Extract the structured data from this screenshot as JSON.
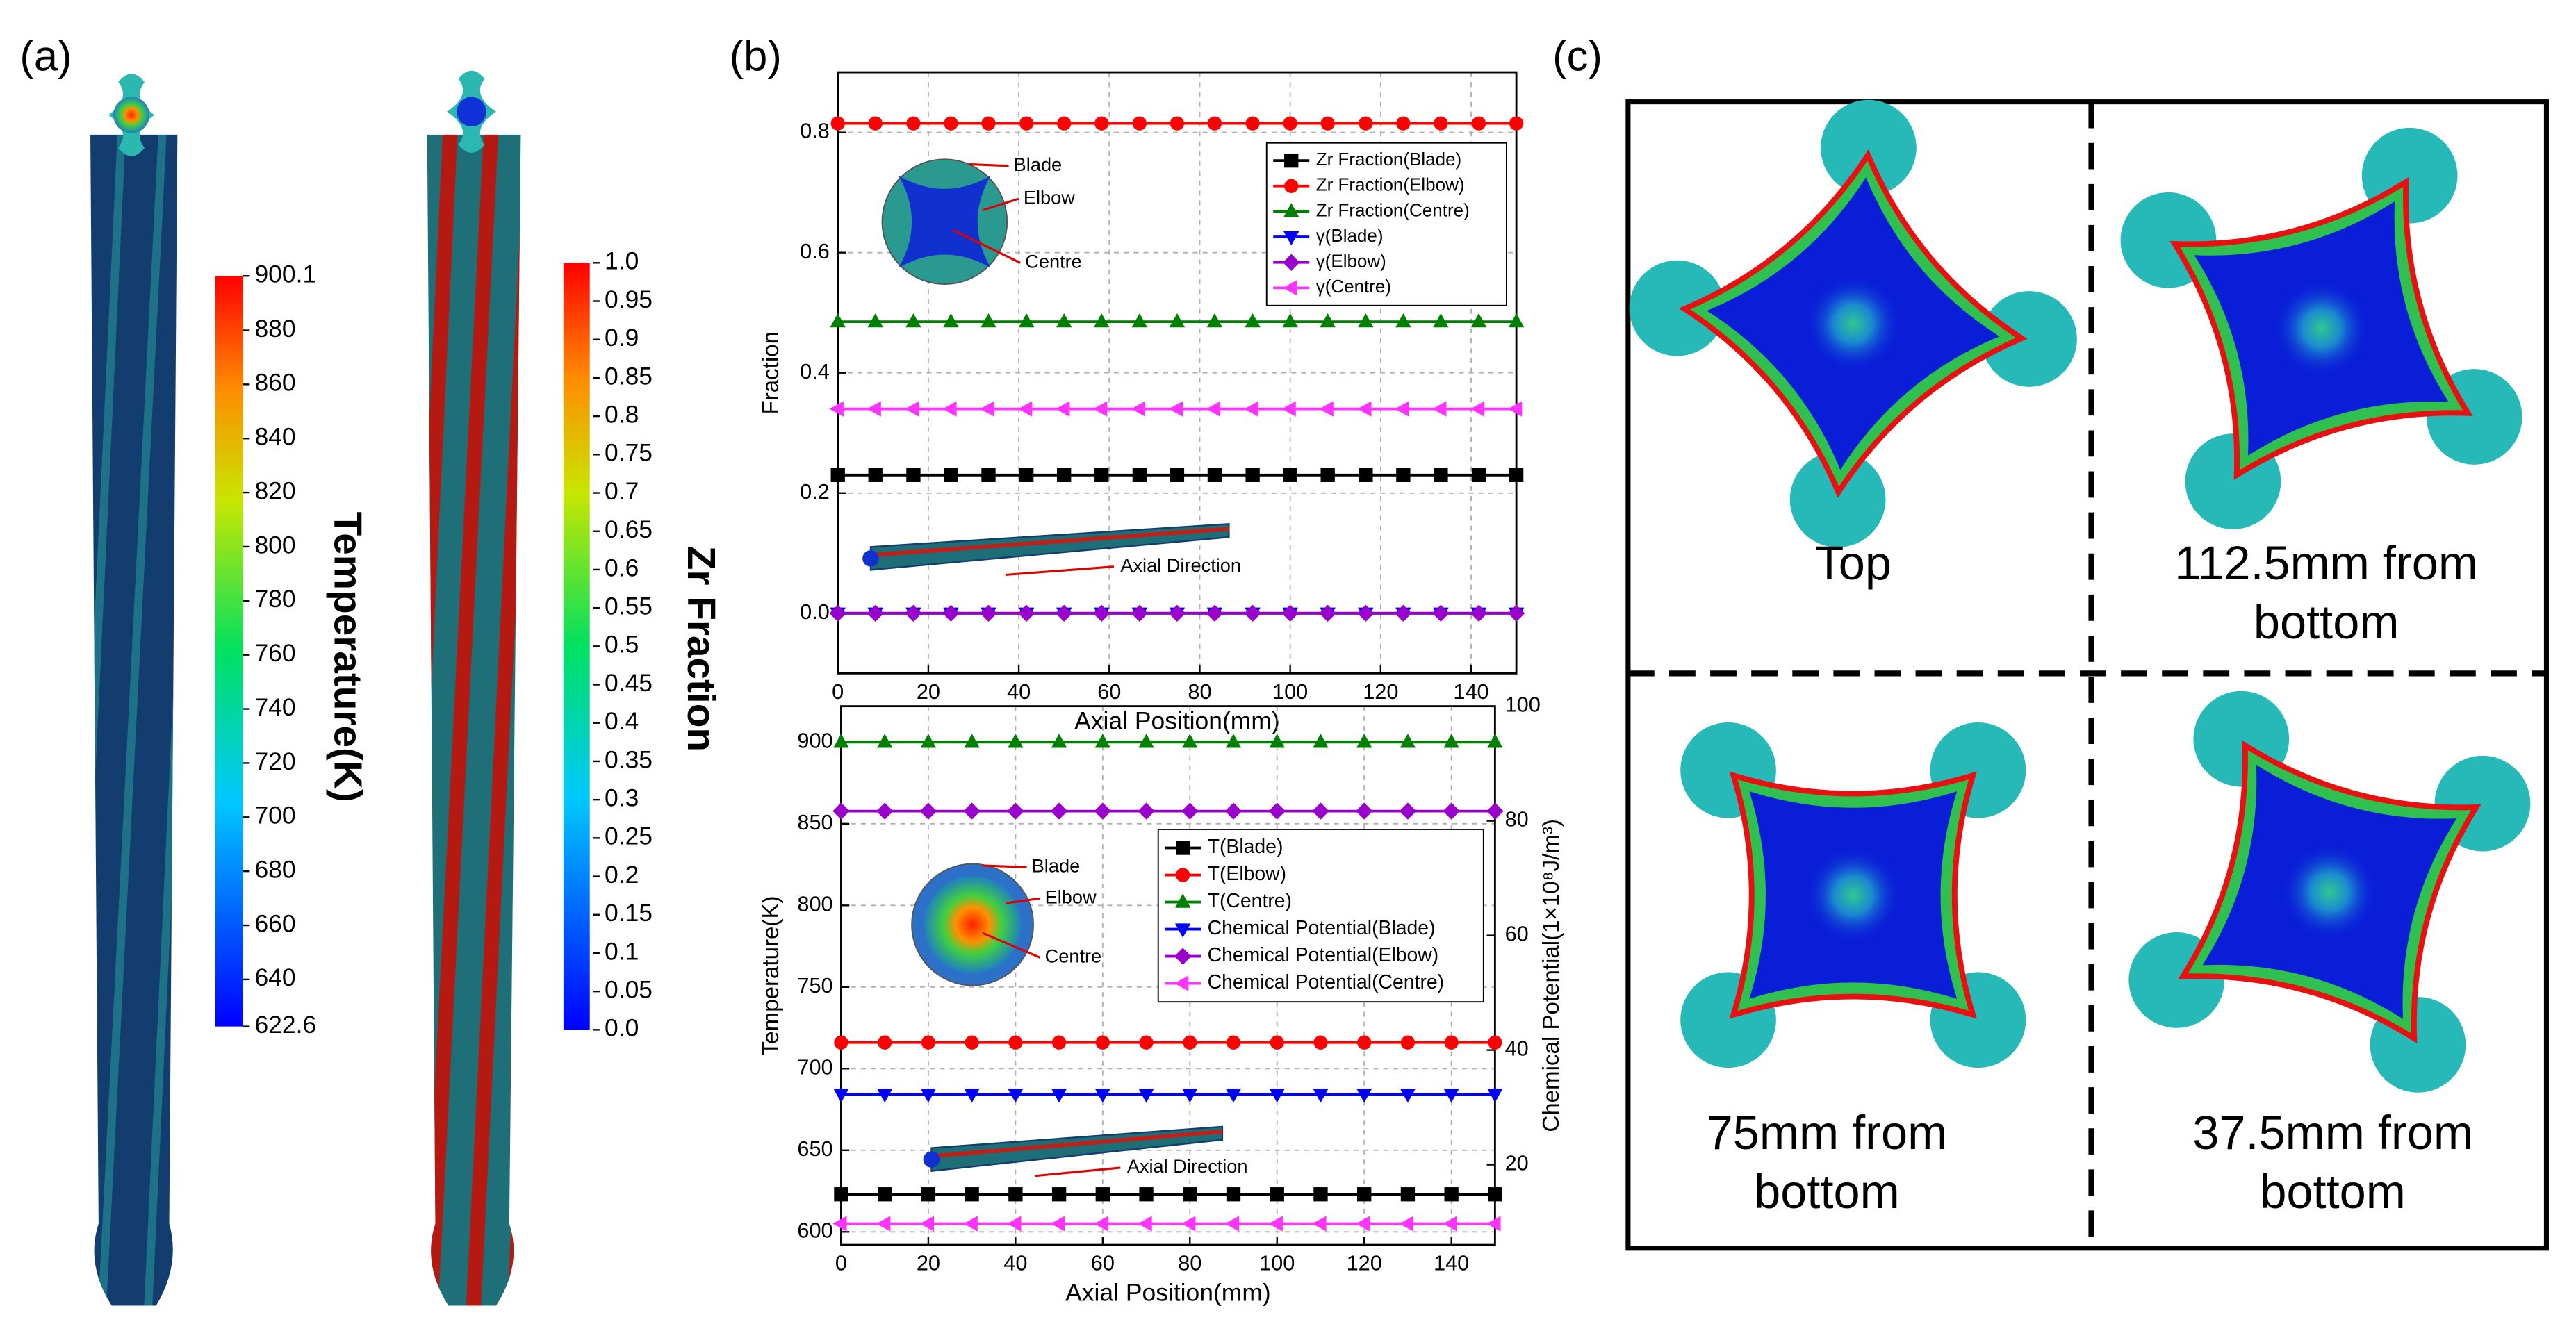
{
  "panel_labels": [
    "(a)",
    "(b)",
    "(c)"
  ],
  "colorbars": [
    {
      "title": "Temperature(K)",
      "ticks": [
        900.1,
        880,
        860,
        840,
        820,
        800,
        780,
        760,
        740,
        720,
        700,
        680,
        660,
        640,
        622.6
      ]
    },
    {
      "title": "Zr Fraction",
      "ticks": [
        {
          "value": 1,
          "label": "1.0"
        },
        0.95,
        0.9,
        0.85,
        0.8,
        0.75,
        0.7,
        0.65,
        0.6,
        0.55,
        0.5,
        0.45,
        0.4,
        0.35,
        0.3,
        0.25,
        0.2,
        0.15,
        0.1,
        0.05,
        {
          "value": 0,
          "label": "0.0"
        }
      ]
    }
  ],
  "chart_data": [
    {
      "type": "line",
      "x_label": "Axial Position(mm)",
      "y_label": "Fraction",
      "x": [
        0,
        8.3,
        16.7,
        25,
        33.3,
        41.7,
        50,
        58.3,
        66.7,
        75,
        83.3,
        91.7,
        100,
        108.3,
        116.7,
        125,
        133.3,
        141.7,
        150
      ],
      "xlim": [
        0,
        150
      ],
      "xticks": [
        0,
        20,
        40,
        60,
        80,
        100,
        120,
        140
      ],
      "ylim": [
        -0.1,
        0.9
      ],
      "yticks": [
        {
          "value": 0,
          "label": "0.0"
        },
        0.2,
        0.4,
        0.6,
        0.8
      ],
      "grid": true,
      "legend": "upper right",
      "series": [
        {
          "name": "Zr Fraction(Blade)",
          "color": "#000000",
          "marker": "square",
          "values": [
            0.23,
            0.23,
            0.23,
            0.23,
            0.23,
            0.23,
            0.23,
            0.23,
            0.23,
            0.23,
            0.23,
            0.23,
            0.23,
            0.23,
            0.23,
            0.23,
            0.23,
            0.23,
            0.23
          ]
        },
        {
          "name": "Zr Fraction(Elbow)",
          "color": "#ff0000",
          "marker": "circle",
          "values": [
            0.815,
            0.815,
            0.815,
            0.815,
            0.815,
            0.815,
            0.815,
            0.815,
            0.815,
            0.815,
            0.815,
            0.815,
            0.815,
            0.815,
            0.815,
            0.815,
            0.815,
            0.815,
            0.815
          ]
        },
        {
          "name": "Zr Fraction(Centre)",
          "color": "#008000",
          "marker": "triangle-up",
          "values": [
            0.485,
            0.485,
            0.485,
            0.485,
            0.485,
            0.485,
            0.485,
            0.485,
            0.485,
            0.485,
            0.485,
            0.485,
            0.485,
            0.485,
            0.485,
            0.485,
            0.485,
            0.485,
            0.485
          ]
        },
        {
          "name": "γ(Blade)",
          "color": "#0000ff",
          "marker": "triangle-down",
          "values": [
            0,
            0,
            0,
            0,
            0,
            0,
            0,
            0,
            0,
            0,
            0,
            0,
            0,
            0,
            0,
            0,
            0,
            0,
            0
          ]
        },
        {
          "name": "γ(Elbow)",
          "color": "#9900cc",
          "marker": "diamond",
          "values": [
            0,
            0,
            0,
            0,
            0,
            0,
            0,
            0,
            0,
            0,
            0,
            0,
            0,
            0,
            0,
            0,
            0,
            0,
            0
          ]
        },
        {
          "name": "γ(Centre)",
          "color": "#ff33ff",
          "marker": "triangle-left",
          "values": [
            0.34,
            0.34,
            0.34,
            0.34,
            0.34,
            0.34,
            0.34,
            0.34,
            0.34,
            0.34,
            0.34,
            0.34,
            0.34,
            0.34,
            0.34,
            0.34,
            0.34,
            0.34,
            0.34
          ]
        }
      ],
      "insets": {
        "cross_section": [
          "Blade",
          "Elbow",
          "Centre"
        ],
        "rod": "Axial Direction"
      }
    },
    {
      "type": "line",
      "x_label": "Axial Position(mm)",
      "y_label": "Temperature(K)",
      "y2_label": "Chemical Potential(1×10⁸J/m³)",
      "x": [
        0,
        10,
        20,
        30,
        40,
        50,
        60,
        70,
        80,
        90,
        100,
        110,
        120,
        130,
        140,
        150
      ],
      "xlim": [
        0,
        150
      ],
      "xticks": [
        0,
        20,
        40,
        60,
        80,
        100,
        120,
        140
      ],
      "ylim": [
        592,
        922
      ],
      "yticks": [
        600,
        650,
        700,
        750,
        800,
        850,
        900
      ],
      "y2lim": [
        6,
        100
      ],
      "y2ticks": [
        20,
        40,
        60,
        80,
        100
      ],
      "grid": true,
      "legend": "upper right",
      "series": [
        {
          "name": "T(Blade)",
          "color": "#000000",
          "marker": "square",
          "values": [
            623,
            623,
            623,
            623,
            623,
            623,
            623,
            623,
            623,
            623,
            623,
            623,
            623,
            623,
            623,
            623
          ]
        },
        {
          "name": "T(Elbow)",
          "color": "#ff0000",
          "marker": "circle",
          "values": [
            716,
            716,
            716,
            716,
            716,
            716,
            716,
            716,
            716,
            716,
            716,
            716,
            716,
            716,
            716,
            716
          ]
        },
        {
          "name": "T(Centre)",
          "color": "#008000",
          "marker": "triangle-up",
          "values": [
            900,
            900,
            900,
            900,
            900,
            900,
            900,
            900,
            900,
            900,
            900,
            900,
            900,
            900,
            900,
            900
          ]
        },
        {
          "name": "Chemical Potential(Blade)",
          "color": "#0000ff",
          "marker": "triangle-down",
          "axis": "y2",
          "values": [
            32.3,
            32.3,
            32.3,
            32.3,
            32.3,
            32.3,
            32.3,
            32.3,
            32.3,
            32.3,
            32.3,
            32.3,
            32.3,
            32.3,
            32.3,
            32.3
          ]
        },
        {
          "name": "Chemical Potential(Elbow)",
          "color": "#9900cc",
          "marker": "diamond",
          "axis": "y2",
          "values": [
            81.7,
            81.7,
            81.7,
            81.7,
            81.7,
            81.7,
            81.7,
            81.7,
            81.7,
            81.7,
            81.7,
            81.7,
            81.7,
            81.7,
            81.7,
            81.7
          ]
        },
        {
          "name": "Chemical Potential(Centre)",
          "color": "#ff33ff",
          "marker": "triangle-left",
          "axis": "y2",
          "values": [
            9.7,
            9.7,
            9.7,
            9.7,
            9.7,
            9.7,
            9.7,
            9.7,
            9.7,
            9.7,
            9.7,
            9.7,
            9.7,
            9.7,
            9.7,
            9.7
          ]
        }
      ],
      "insets": {
        "cross_section": [
          "Blade",
          "Elbow",
          "Centre"
        ],
        "rod": "Axial Direction"
      }
    }
  ],
  "cross_sections": [
    {
      "label": [
        "Top"
      ]
    },
    {
      "label": [
        "112.5mm from",
        "bottom"
      ]
    },
    {
      "label": [
        "75mm from",
        "bottom"
      ]
    },
    {
      "label": [
        "37.5mm from",
        "bottom"
      ]
    }
  ]
}
